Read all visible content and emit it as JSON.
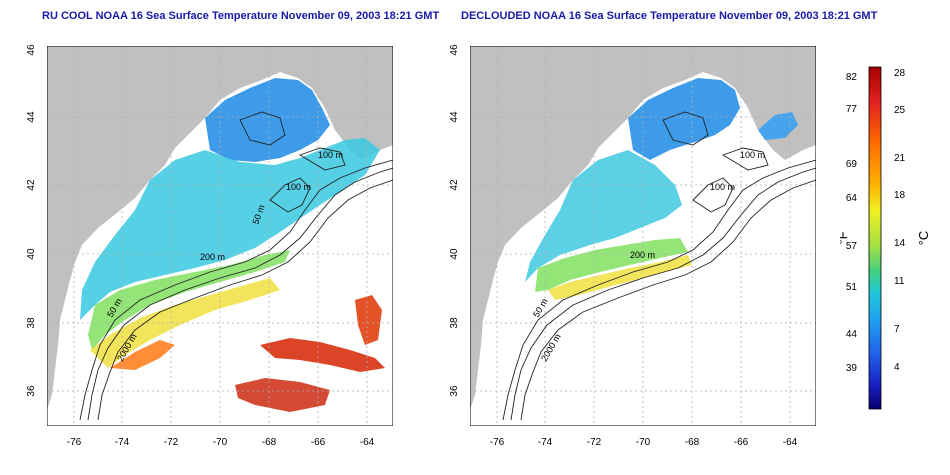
{
  "left_panel": {
    "title": "RU COOL NOAA 16 Sea Surface Temperature November 09, 2003 18:21 GMT",
    "x_ticks": [
      "-76",
      "-74",
      "-72",
      "-70",
      "-68",
      "-66",
      "-64"
    ],
    "y_ticks": [
      "36",
      "38",
      "40",
      "42",
      "44",
      "46"
    ],
    "contour_labels": [
      "100 m",
      "100 m",
      "50 m",
      "200 m",
      "50 m",
      "2000 m"
    ]
  },
  "right_panel": {
    "title": "DECLOUDED NOAA 16 Sea Surface Temperature November 09, 2003 18:21 GMT",
    "x_ticks": [
      "-76",
      "-74",
      "-72",
      "-70",
      "-68",
      "-66",
      "-64"
    ],
    "y_ticks": [
      "36",
      "38",
      "40",
      "42",
      "44",
      "46"
    ],
    "contour_labels": [
      "100 m",
      "100 m",
      "200 m",
      "50 m",
      "2000 m"
    ]
  },
  "colorbar": {
    "f_label": "°F",
    "c_label": "°C",
    "f_ticks": [
      "82",
      "77",
      "69",
      "64",
      "57",
      "51",
      "44",
      "39"
    ],
    "c_ticks": [
      "28",
      "25",
      "21",
      "18",
      "14",
      "11",
      "7",
      "4"
    ],
    "colors": [
      "#a50000",
      "#e02020",
      "#ff6a00",
      "#ffb000",
      "#f0f020",
      "#a8e040",
      "#40d080",
      "#20c8d8",
      "#20a0f0",
      "#2060e8",
      "#1820c0",
      "#080070"
    ]
  },
  "map_colors": {
    "land": "#c0c0c0",
    "ocean": "#ffffff",
    "grid": "#b0b0b0",
    "contour": "#222222"
  }
}
